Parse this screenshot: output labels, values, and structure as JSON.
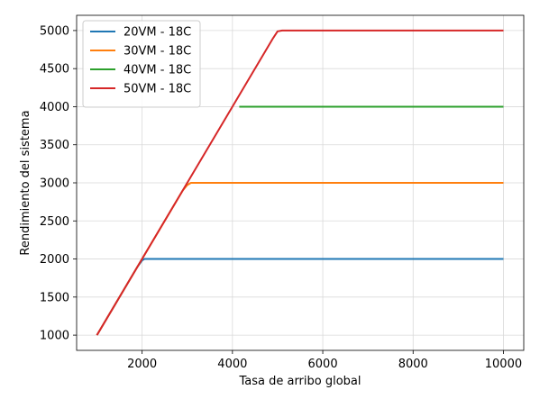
{
  "chart_data": {
    "type": "line",
    "xlabel": "Tasa de arribo global",
    "ylabel": "Rendimiento del sistema",
    "xlim": [
      550,
      10450
    ],
    "ylim": [
      800,
      5200
    ],
    "xticks": [
      2000,
      4000,
      6000,
      8000,
      10000
    ],
    "yticks": [
      1000,
      1500,
      2000,
      2500,
      3000,
      3500,
      4000,
      4500,
      5000
    ],
    "xtick_labels": [
      "2000",
      "4000",
      "6000",
      "8000",
      "10000"
    ],
    "ytick_labels": [
      "1000",
      "1500",
      "2000",
      "2500",
      "3000",
      "3500",
      "4000",
      "4500",
      "5000"
    ],
    "grid": true,
    "legend_position": "top-left",
    "series": [
      {
        "name": "20VM - 18C",
        "color": "#1f77b4",
        "x": [
          1000,
          1500,
          1900,
          2000,
          2050,
          2100,
          10000
        ],
        "y": [
          1000,
          1500,
          1900,
          1980,
          2000,
          2000,
          2000
        ]
      },
      {
        "name": "30VM - 18C",
        "color": "#ff7f0e",
        "x": [
          1000,
          1500,
          2000,
          2500,
          2900,
          3000,
          3080,
          3150,
          10000
        ],
        "y": [
          1000,
          1500,
          2000,
          2500,
          2900,
          2970,
          3000,
          3000,
          3000
        ]
      },
      {
        "name": "40VM - 18C",
        "color": "#2ca02c",
        "x": [
          4150,
          10000
        ],
        "y": [
          4000,
          4000
        ]
      },
      {
        "name": "50VM - 18C",
        "color": "#d62728",
        "x": [
          1000,
          2000,
          3000,
          4000,
          4900,
          5000,
          5100,
          10000
        ],
        "y": [
          1000,
          2000,
          3000,
          4000,
          4900,
          4990,
          5000,
          5000
        ]
      }
    ]
  }
}
